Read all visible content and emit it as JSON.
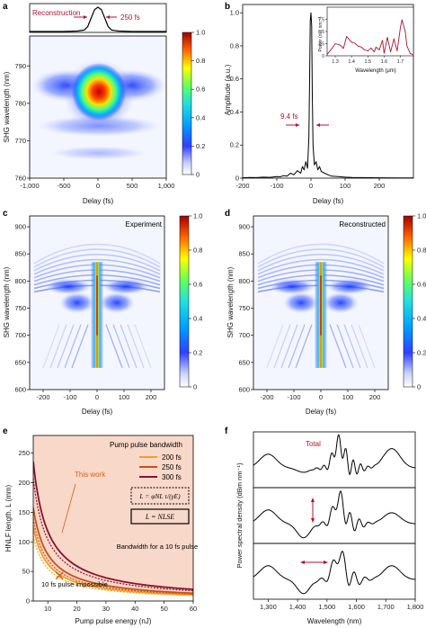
{
  "chart_data": [
    {
      "panel": "a",
      "type": "heatmap",
      "xlabel": "Delay (fs)",
      "ylabel": "SHG wavelength (nm)",
      "x_ticks": [
        "-1,000",
        "-500",
        "0",
        "500",
        "1,000"
      ],
      "y_ticks": [
        "760",
        "770",
        "780",
        "790"
      ],
      "xlim": [
        -1000,
        1000
      ],
      "ylim": [
        760,
        798
      ],
      "colorbar_ticks": [
        "0",
        "0.2",
        "0.4",
        "0.6",
        "0.8",
        "1.0"
      ],
      "peak": {
        "x": 0,
        "y": 782
      },
      "inset": {
        "type": "line",
        "annotations": [
          "Reconstruction",
          "250 fs"
        ],
        "x": [
          -1000,
          -500,
          -300,
          -200,
          -150,
          -100,
          -50,
          0,
          50,
          100,
          150,
          200,
          300,
          500,
          1000
        ],
        "y": [
          0,
          0,
          0.02,
          0.06,
          0.2,
          0.55,
          0.9,
          1.0,
          0.9,
          0.55,
          0.2,
          0.06,
          0.02,
          0,
          0
        ]
      }
    },
    {
      "panel": "b",
      "type": "line",
      "xlabel": "Delay (fs)",
      "ylabel": "Amplitude (a.u.)",
      "x_ticks": [
        "-200",
        "-100",
        "0",
        "100",
        "200"
      ],
      "y_ticks": [
        "0",
        "0.2",
        "0.4",
        "0.6",
        "0.8",
        "1.0"
      ],
      "xlim": [
        -200,
        300
      ],
      "ylim": [
        0,
        1.05
      ],
      "annotations": [
        "9.4 fs"
      ],
      "x": [
        -200,
        -180,
        -160,
        -140,
        -120,
        -100,
        -90,
        -80,
        -70,
        -60,
        -50,
        -40,
        -30,
        -25,
        -20,
        -15,
        -10,
        -6,
        -4,
        -2,
        0,
        2,
        4,
        6,
        10,
        15,
        20,
        25,
        30,
        40,
        50,
        60,
        80,
        100,
        120,
        150,
        200,
        250,
        300
      ],
      "y": [
        0.002,
        0.004,
        0.003,
        0.006,
        0.005,
        0.01,
        0.008,
        0.015,
        0.012,
        0.03,
        0.02,
        0.045,
        0.03,
        0.07,
        0.05,
        0.1,
        0.06,
        0.25,
        0.6,
        0.95,
        1.0,
        0.92,
        0.5,
        0.2,
        0.08,
        0.1,
        0.05,
        0.07,
        0.04,
        0.03,
        0.02,
        0.012,
        0.01,
        0.006,
        0.004,
        0.003,
        0.002,
        0.001,
        0.001
      ],
      "inset": {
        "xlabel": "Wavelength (μm)",
        "ylabel": "Power (nW nm⁻¹)",
        "x_ticks": [
          "1.3",
          "1.4",
          "1.5",
          "1.6",
          "1.7"
        ],
        "y_ticks": [
          "0",
          "2.5",
          "5",
          "7.5"
        ],
        "xlim": [
          1.25,
          1.78
        ],
        "ylim": [
          0,
          10
        ],
        "x": [
          1.25,
          1.28,
          1.3,
          1.33,
          1.35,
          1.37,
          1.38,
          1.4,
          1.42,
          1.44,
          1.46,
          1.48,
          1.5,
          1.52,
          1.54,
          1.55,
          1.57,
          1.59,
          1.6,
          1.62,
          1.64,
          1.66,
          1.68,
          1.7,
          1.71,
          1.72,
          1.73,
          1.74,
          1.76,
          1.78
        ],
        "y": [
          0.3,
          1.5,
          2.5,
          2.2,
          1.5,
          4.0,
          3.6,
          2.8,
          2.6,
          2.0,
          1.8,
          1.2,
          1.0,
          1.6,
          0.8,
          1.8,
          1.2,
          3.2,
          0.5,
          3.8,
          0.8,
          3.5,
          1.0,
          5.8,
          7.4,
          6.2,
          5.0,
          2.0,
          0.5,
          0.2
        ]
      }
    },
    {
      "panel": "c",
      "type": "heatmap",
      "annotation": "Experiment",
      "xlabel": "Delay (fs)",
      "ylabel": "SHG wavelength (nm)",
      "x_ticks": [
        "-200",
        "-100",
        "0",
        "100",
        "200"
      ],
      "y_ticks": [
        "600",
        "650",
        "700",
        "750",
        "800",
        "850",
        "900"
      ],
      "xlim": [
        -250,
        250
      ],
      "ylim": [
        600,
        920
      ],
      "colorbar_ticks": [
        "0",
        "0.2",
        "0.4",
        "0.6",
        "0.8",
        "1.0"
      ]
    },
    {
      "panel": "d",
      "type": "heatmap",
      "annotation": "Reconstructed",
      "xlabel": "Delay (fs)",
      "ylabel": "SHG wavelength (nm)",
      "x_ticks": [
        "-200",
        "-100",
        "0",
        "100",
        "200"
      ],
      "y_ticks": [
        "600",
        "650",
        "700",
        "750",
        "800",
        "850",
        "900"
      ],
      "xlim": [
        -250,
        250
      ],
      "ylim": [
        600,
        920
      ],
      "colorbar_ticks": [
        "0",
        "0.2",
        "0.4",
        "0.6",
        "0.8",
        "1.0"
      ]
    },
    {
      "panel": "e",
      "type": "line",
      "xlabel": "Pump pulse energy (nJ)",
      "ylabel": "HNLF length, L (mm)",
      "x_ticks": [
        "10",
        "20",
        "30",
        "40",
        "50",
        "60"
      ],
      "y_ticks": [
        "0",
        "50",
        "100",
        "150",
        "200",
        "250"
      ],
      "xlim": [
        5,
        60
      ],
      "ylim": [
        0,
        280
      ],
      "legend_title": "Pump pulse bandwidth",
      "legend_formula": "L = φNL τ/(γE)",
      "legend_nlse": "L = NLSE",
      "annotations": [
        "This work",
        "Bandwidth for a 10 fs pulse",
        "10 fs pulse impossible"
      ],
      "work_point": {
        "x": 14,
        "y": 43
      },
      "series": [
        {
          "name": "200 fs",
          "color": "#f0a020",
          "k": 625
        },
        {
          "name": "250 fs",
          "color": "#c8501a",
          "k": 790
        },
        {
          "name": "300 fs",
          "color": "#8a1030",
          "k": 1180
        }
      ]
    },
    {
      "panel": "f",
      "type": "line",
      "xlabel": "Wavelength (nm)",
      "ylabel": "Power spectral density (dBm nm⁻¹)",
      "x_ticks": [
        "1,300",
        "1,400",
        "1,500",
        "1,600",
        "1,700",
        "1,800"
      ],
      "xlim": [
        1250,
        1800
      ],
      "annotations": [
        "Total"
      ],
      "series": [
        {
          "name": "Total"
        },
        {
          "name": ""
        },
        {
          "name": ""
        }
      ]
    }
  ]
}
